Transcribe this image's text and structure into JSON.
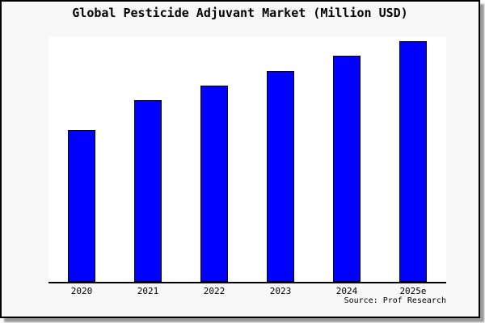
{
  "title": "Global Pesticide Adjuvant Market (Million USD)",
  "source": "Source: Prof Research",
  "colors": {
    "bar_fill": "#0000ff",
    "bar_border": "#000000",
    "card_background": "#f8f8f8",
    "plot_background": "#ffffff",
    "axis": "#000000",
    "frame_border": "#000000",
    "shadow": "#999999"
  },
  "chart_data": {
    "type": "bar",
    "title": "Global Pesticide Adjuvant Market (Million USD)",
    "categories": [
      "2020",
      "2021",
      "2022",
      "2023",
      "2024",
      "2025e"
    ],
    "values": [
      189,
      226,
      245,
      263,
      282,
      300
    ],
    "value_unit": "relative bar height (px); no y-axis tick labels are shown in the chart",
    "xlabel": "",
    "ylabel": "",
    "ylim": [
      0,
      305
    ],
    "grid": false,
    "legend": false,
    "bar_color": "#0000ff",
    "source": "Source: Prof Research"
  }
}
